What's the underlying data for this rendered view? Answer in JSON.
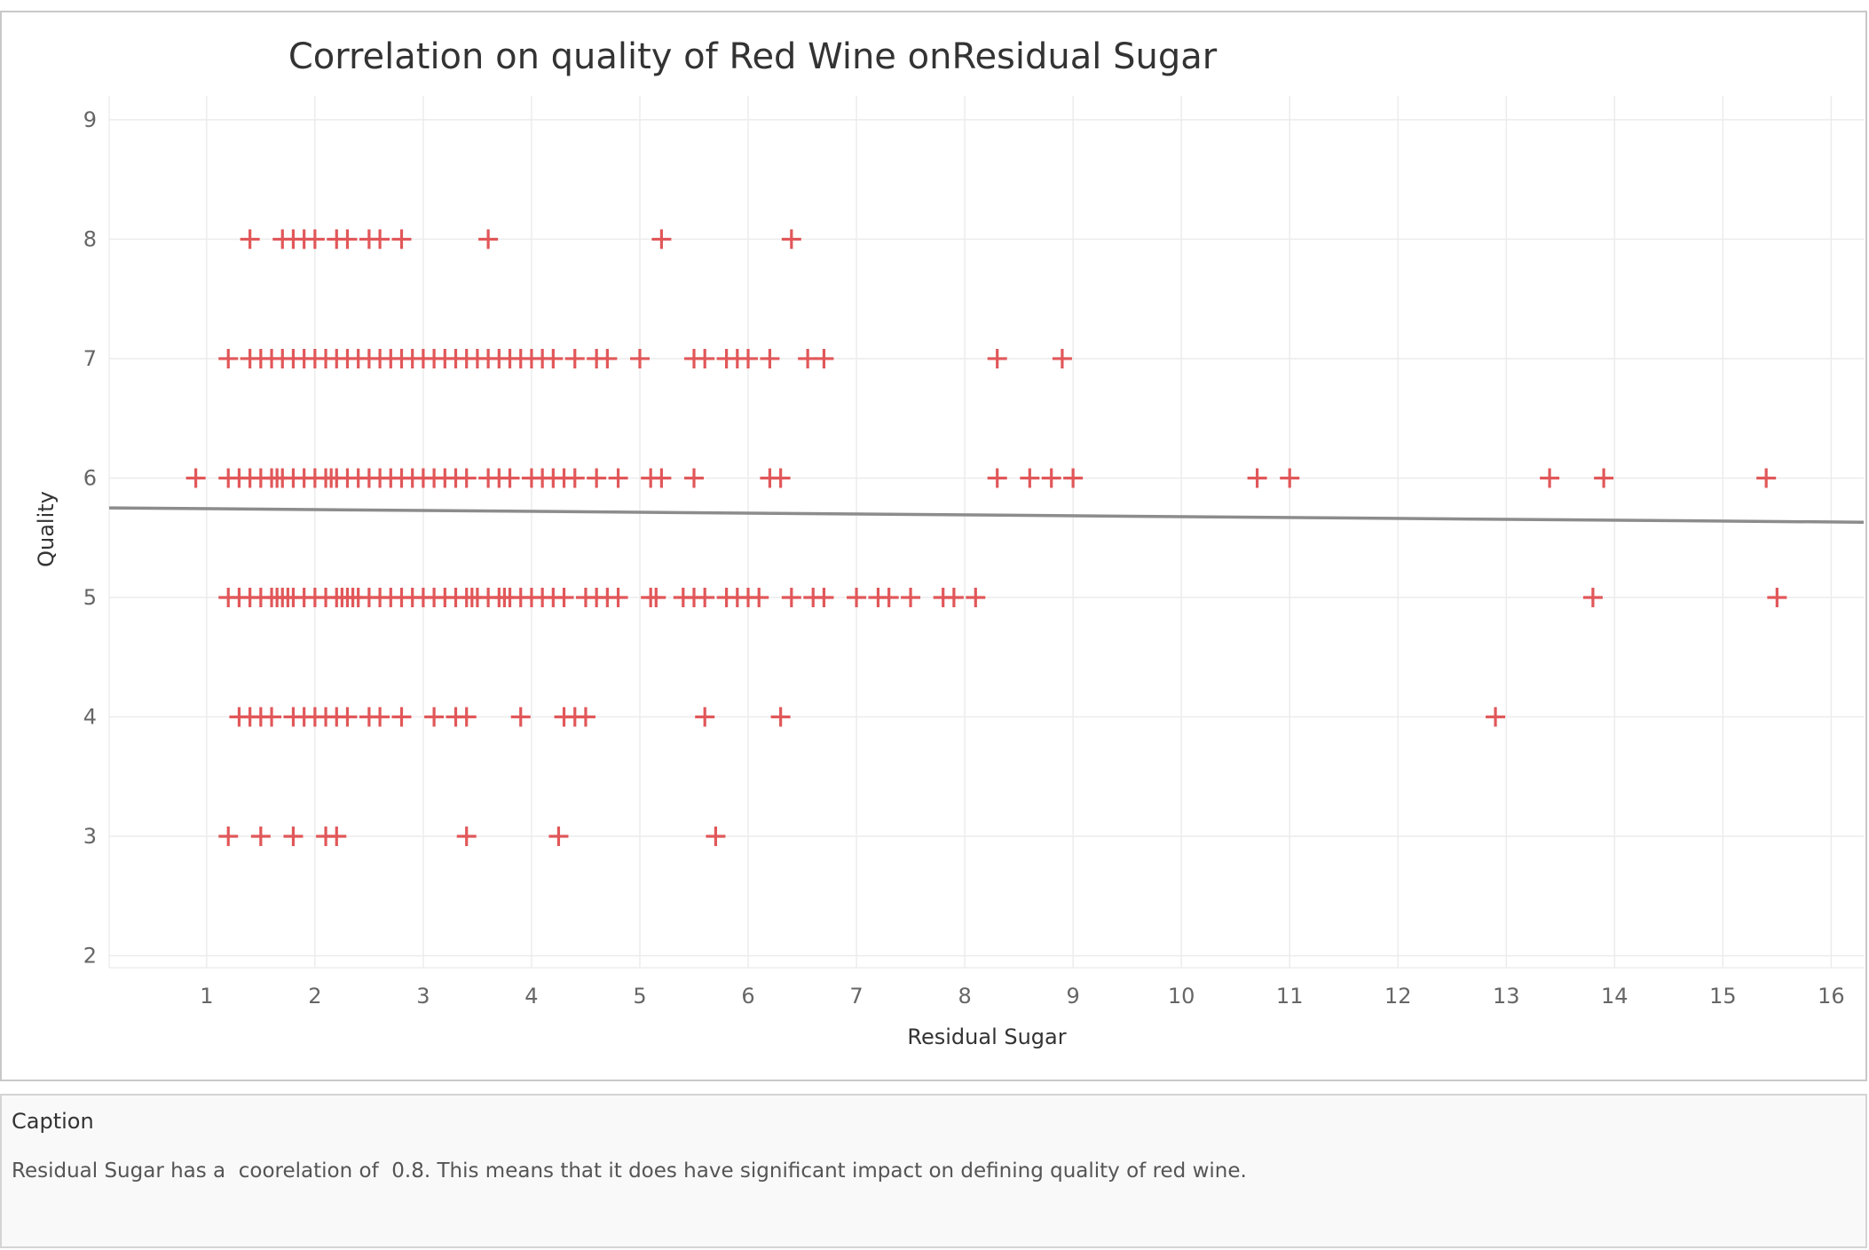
{
  "chart_data": {
    "type": "scatter",
    "title": "Correlation on quality of Red Wine onResidual Sugar",
    "xlabel": "Residual Sugar",
    "ylabel": "Quality",
    "xlim": [
      0.1,
      16.3
    ],
    "ylim": [
      1.9,
      9.2
    ],
    "x_ticks": [
      1,
      2,
      3,
      4,
      5,
      6,
      7,
      8,
      9,
      10,
      11,
      12,
      13,
      14,
      15,
      16
    ],
    "y_ticks": [
      2,
      3,
      4,
      5,
      6,
      7,
      8,
      9
    ],
    "grid": true,
    "marker": "cross",
    "colors": {
      "marker": "#e15759",
      "trend": "#8c8c8c",
      "grid": "#ececec"
    },
    "trend_line": {
      "x": [
        0.1,
        16.3
      ],
      "y": [
        5.75,
        5.63
      ]
    },
    "points": [
      {
        "quality": 8,
        "x": [
          1.4,
          1.7,
          1.8,
          1.9,
          2.0,
          2.2,
          2.3,
          2.5,
          2.6,
          2.8,
          3.6,
          5.2,
          6.4
        ]
      },
      {
        "quality": 7,
        "x": [
          1.2,
          1.4,
          1.5,
          1.6,
          1.7,
          1.8,
          1.9,
          2.0,
          2.1,
          2.2,
          2.3,
          2.4,
          2.5,
          2.6,
          2.7,
          2.8,
          2.9,
          3.0,
          3.1,
          3.2,
          3.3,
          3.4,
          3.5,
          3.6,
          3.7,
          3.8,
          3.9,
          4.0,
          4.1,
          4.2,
          4.4,
          4.6,
          4.7,
          5.0,
          5.5,
          5.6,
          5.8,
          5.9,
          6.0,
          6.2,
          6.55,
          6.7,
          8.3,
          8.9
        ]
      },
      {
        "quality": 6,
        "x": [
          0.9,
          1.2,
          1.3,
          1.4,
          1.5,
          1.6,
          1.65,
          1.7,
          1.8,
          1.9,
          2.0,
          2.1,
          2.15,
          2.2,
          2.3,
          2.4,
          2.5,
          2.6,
          2.7,
          2.8,
          2.9,
          3.0,
          3.1,
          3.2,
          3.3,
          3.4,
          3.6,
          3.7,
          3.8,
          4.0,
          4.1,
          4.2,
          4.3,
          4.4,
          4.6,
          4.8,
          5.1,
          5.2,
          5.5,
          6.2,
          6.3,
          8.3,
          8.6,
          8.8,
          9.0,
          10.7,
          11.0,
          13.4,
          13.9,
          15.4
        ]
      },
      {
        "quality": 5,
        "x": [
          1.2,
          1.3,
          1.4,
          1.5,
          1.6,
          1.65,
          1.7,
          1.75,
          1.8,
          1.9,
          2.0,
          2.1,
          2.2,
          2.25,
          2.3,
          2.35,
          2.4,
          2.5,
          2.6,
          2.7,
          2.8,
          2.9,
          3.0,
          3.1,
          3.2,
          3.3,
          3.4,
          3.45,
          3.5,
          3.6,
          3.7,
          3.75,
          3.8,
          3.9,
          4.0,
          4.1,
          4.2,
          4.3,
          4.5,
          4.6,
          4.7,
          4.8,
          5.1,
          5.15,
          5.4,
          5.5,
          5.6,
          5.8,
          5.9,
          6.0,
          6.1,
          6.4,
          6.6,
          6.7,
          7.0,
          7.2,
          7.3,
          7.5,
          7.8,
          7.9,
          8.1,
          13.8,
          15.5
        ]
      },
      {
        "quality": 4,
        "x": [
          1.3,
          1.4,
          1.5,
          1.6,
          1.8,
          1.9,
          2.0,
          2.1,
          2.2,
          2.3,
          2.5,
          2.6,
          2.8,
          3.1,
          3.3,
          3.4,
          3.9,
          4.3,
          4.4,
          4.5,
          5.6,
          6.3,
          12.9
        ]
      },
      {
        "quality": 3,
        "x": [
          1.2,
          1.5,
          1.8,
          2.1,
          2.2,
          3.4,
          4.25,
          5.7
        ]
      }
    ]
  },
  "caption": {
    "title": "Caption",
    "text": "Residual Sugar has a  coorelation of  0.8. This means that it does have significant impact on defining quality of red wine."
  }
}
